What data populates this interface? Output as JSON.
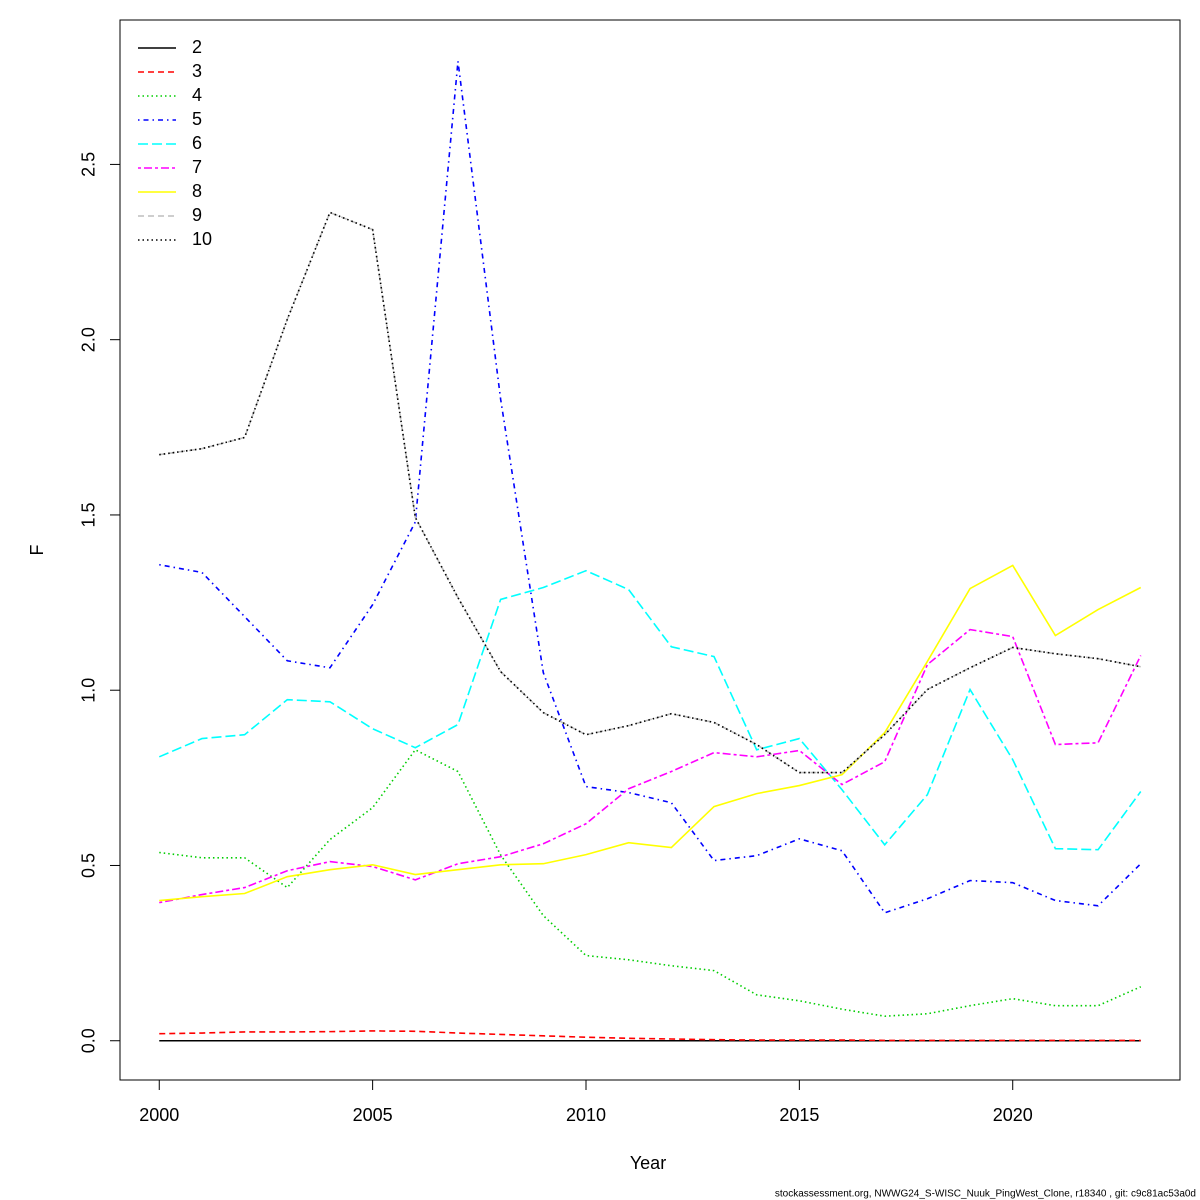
{
  "chart_data": {
    "type": "line",
    "xlabel": "Year",
    "ylabel": "F",
    "footnote": "stockassessment.org, NWWG24_S-WISC_Nuuk_PingWest_Clone, r18340 , git: c9c81ac53a0d",
    "x": [
      2000,
      2001,
      2002,
      2003,
      2004,
      2005,
      2006,
      2007,
      2008,
      2009,
      2010,
      2011,
      2012,
      2013,
      2014,
      2015,
      2016,
      2017,
      2018,
      2019,
      2020,
      2021,
      2022,
      2023
    ],
    "xlim": [
      1999.08,
      2023.92
    ],
    "xticks": [
      2000,
      2005,
      2010,
      2015,
      2020
    ],
    "ylim": [
      -0.112,
      2.912
    ],
    "yticks": [
      {
        "value": 0,
        "label": "0.0"
      },
      0.5,
      {
        "value": 1,
        "label": "1.0"
      },
      1.5,
      {
        "value": 2,
        "label": "2.0"
      },
      2.5
    ],
    "legend": "top-left",
    "series": [
      {
        "name": "2",
        "color": "#000000",
        "dash": "none",
        "values": [
          0,
          0,
          0,
          0,
          0,
          0,
          0,
          0,
          0,
          0,
          0,
          0,
          0,
          0,
          0,
          0,
          0,
          0,
          0,
          0,
          0,
          0,
          0,
          0
        ]
      },
      {
        "name": "3",
        "color": "#ff0000",
        "dash": "6,4",
        "values": [
          0.02,
          0.022,
          0.025,
          0.025,
          0.026,
          0.028,
          0.027,
          0.022,
          0.018,
          0.014,
          0.01,
          0.007,
          0.005,
          0.003,
          0.002,
          0.002,
          0.002,
          0.001,
          0.001,
          0.001,
          0.001,
          0.001,
          0.001,
          0.001
        ]
      },
      {
        "name": "4",
        "color": "#00cd00",
        "dash": "1.5,3",
        "values": [
          0.537,
          0.522,
          0.522,
          0.437,
          0.574,
          0.665,
          0.83,
          0.768,
          0.53,
          0.357,
          0.243,
          0.231,
          0.214,
          0.2,
          0.131,
          0.114,
          0.09,
          0.07,
          0.077,
          0.1,
          0.12,
          0.1,
          0.1,
          0.154
        ]
      },
      {
        "name": "5",
        "color": "#0000ff",
        "dash": "1.5,4,5,4",
        "values": [
          1.358,
          1.336,
          1.21,
          1.084,
          1.064,
          1.244,
          1.48,
          2.794,
          1.83,
          1.05,
          0.725,
          0.708,
          0.679,
          0.514,
          0.528,
          0.576,
          0.542,
          0.365,
          0.405,
          0.457,
          0.451,
          0.4,
          0.385,
          0.505
        ]
      },
      {
        "name": "6",
        "color": "#00ffff",
        "dash": "10,4",
        "values": [
          0.81,
          0.862,
          0.873,
          0.973,
          0.967,
          0.89,
          0.836,
          0.902,
          1.259,
          1.293,
          1.341,
          1.287,
          1.124,
          1.096,
          0.83,
          0.862,
          0.716,
          0.559,
          0.702,
          1.002,
          0.802,
          0.548,
          0.545,
          0.711
        ]
      },
      {
        "name": "7",
        "color": "#ff00ff",
        "dash": "3,3,8,3",
        "values": [
          0.394,
          0.417,
          0.437,
          0.485,
          0.511,
          0.497,
          0.459,
          0.505,
          0.525,
          0.562,
          0.619,
          0.719,
          0.768,
          0.822,
          0.81,
          0.828,
          0.731,
          0.796,
          1.073,
          1.173,
          1.153,
          0.845,
          0.85,
          1.099
        ]
      },
      {
        "name": "8",
        "color": "#ffff00",
        "dash": "none",
        "values": [
          0.4,
          0.411,
          0.42,
          0.468,
          0.488,
          0.502,
          0.474,
          0.488,
          0.502,
          0.505,
          0.531,
          0.565,
          0.551,
          0.668,
          0.705,
          0.728,
          0.759,
          0.879,
          1.082,
          1.29,
          1.356,
          1.156,
          1.23,
          1.293
        ]
      },
      {
        "name": "9",
        "color": "#bebebe",
        "dash": "6,4",
        "values": [
          1.672,
          1.689,
          1.721,
          2.058,
          2.363,
          2.314,
          1.493,
          1.264,
          1.053,
          0.936,
          0.873,
          0.899,
          0.933,
          0.908,
          0.845,
          0.765,
          0.765,
          0.873,
          1.002,
          1.064,
          1.122,
          1.104,
          1.09,
          1.067
        ]
      },
      {
        "name": "10",
        "color": "#000000",
        "dash": "1.5,3",
        "values": [
          1.672,
          1.689,
          1.721,
          2.058,
          2.363,
          2.314,
          1.493,
          1.264,
          1.053,
          0.936,
          0.873,
          0.899,
          0.933,
          0.908,
          0.845,
          0.765,
          0.765,
          0.873,
          1.002,
          1.064,
          1.122,
          1.104,
          1.09,
          1.067
        ]
      }
    ]
  }
}
